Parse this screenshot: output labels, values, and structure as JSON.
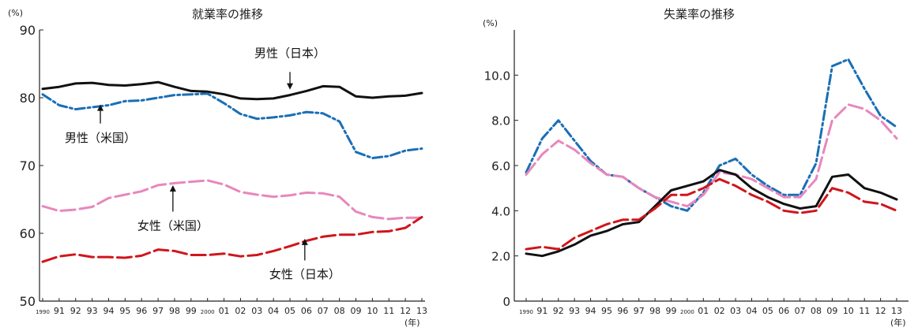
{
  "chart_data": [
    {
      "type": "line",
      "title": "就業率の推移",
      "y_unit": "(%)",
      "x_unit": "(年)",
      "categories": [
        "1990",
        "91",
        "92",
        "93",
        "94",
        "95",
        "96",
        "97",
        "98",
        "99",
        "2000",
        "01",
        "02",
        "03",
        "04",
        "05",
        "06",
        "07",
        "08",
        "09",
        "10",
        "11",
        "12",
        "13"
      ],
      "ylim": [
        50,
        90
      ],
      "yticks": [
        "50",
        "60",
        "70",
        "80",
        "90"
      ],
      "grid": false,
      "series": [
        {
          "name": "男性（日本）",
          "color": "#111111",
          "style": "solid",
          "values": [
            81.3,
            81.6,
            82.1,
            82.2,
            81.9,
            81.8,
            82.0,
            82.3,
            81.6,
            81.0,
            80.9,
            80.5,
            79.9,
            79.8,
            79.9,
            80.4,
            81.0,
            81.7,
            81.6,
            80.2,
            80.0,
            80.2,
            80.3,
            80.7
          ],
          "label": {
            "text": "男性（日本）",
            "at": 15,
            "arrow_from": 83.8,
            "arrow_to": 81.2,
            "text_y": 86.0
          }
        },
        {
          "name": "男性（米国）",
          "color": "#1a6fb5",
          "style": "dashdot",
          "values": [
            80.5,
            78.9,
            78.3,
            78.6,
            78.9,
            79.5,
            79.6,
            80.0,
            80.4,
            80.5,
            80.6,
            79.2,
            77.6,
            76.9,
            77.1,
            77.4,
            77.9,
            77.7,
            76.5,
            72.0,
            71.1,
            71.4,
            72.2,
            72.5
          ],
          "label": {
            "text": "男性（米国）",
            "at": 3.5,
            "arrow_from": 76.2,
            "arrow_to": 79.0,
            "text_y": 73.5
          }
        },
        {
          "name": "女性（米国）",
          "color": "#e887bd",
          "style": "longdash",
          "values": [
            64.0,
            63.3,
            63.5,
            63.9,
            65.2,
            65.7,
            66.2,
            67.1,
            67.4,
            67.6,
            67.8,
            67.2,
            66.1,
            65.7,
            65.4,
            65.6,
            66.0,
            65.9,
            65.4,
            63.2,
            62.4,
            62.1,
            62.3,
            62.3
          ],
          "label": {
            "text": "女性（米国）",
            "at": 7.9,
            "arrow_from": 63.2,
            "arrow_to": 67.1,
            "text_y": 60.5
          }
        },
        {
          "name": "女性（日本）",
          "color": "#d0151c",
          "style": "longdash",
          "values": [
            55.8,
            56.6,
            56.9,
            56.5,
            56.5,
            56.4,
            56.7,
            57.6,
            57.4,
            56.8,
            56.8,
            57.0,
            56.6,
            56.8,
            57.4,
            58.1,
            58.9,
            59.5,
            59.8,
            59.8,
            60.2,
            60.3,
            60.8,
            62.4
          ],
          "label": {
            "text": "女性（日本）",
            "at": 15.9,
            "arrow_from": 56.0,
            "arrow_to": 59.2,
            "text_y": 53.4
          }
        }
      ]
    },
    {
      "type": "line",
      "title": "失業率の推移",
      "y_unit": "(%)",
      "x_unit": "(年)",
      "categories": [
        "1990",
        "91",
        "92",
        "93",
        "94",
        "95",
        "96",
        "97",
        "98",
        "99",
        "2000",
        "01",
        "02",
        "03",
        "04",
        "05",
        "06",
        "07",
        "08",
        "09",
        "10",
        "11",
        "12",
        "13"
      ],
      "ylim": [
        0,
        12
      ],
      "yticks": [
        "0",
        "2.0",
        "4.0",
        "6.0",
        "8.0",
        "10.0"
      ],
      "grid": false,
      "series": [
        {
          "color": "#1a6fb5",
          "style": "dashdot",
          "values": [
            5.7,
            7.2,
            8.0,
            7.1,
            6.2,
            5.6,
            5.5,
            5.0,
            4.6,
            4.2,
            4.0,
            4.8,
            6.0,
            6.3,
            5.6,
            5.1,
            4.7,
            4.7,
            6.1,
            10.4,
            10.7,
            9.4,
            8.2,
            7.7
          ]
        },
        {
          "color": "#e887bd",
          "style": "longdash",
          "values": [
            5.6,
            6.5,
            7.1,
            6.7,
            6.1,
            5.6,
            5.5,
            5.0,
            4.6,
            4.4,
            4.2,
            4.7,
            5.7,
            5.6,
            5.4,
            5.0,
            4.6,
            4.6,
            5.4,
            8.0,
            8.7,
            8.5,
            8.0,
            7.2
          ]
        },
        {
          "color": "#111111",
          "style": "solid",
          "values": [
            2.1,
            2.0,
            2.2,
            2.5,
            2.9,
            3.1,
            3.4,
            3.5,
            4.2,
            4.9,
            5.1,
            5.3,
            5.8,
            5.6,
            5.0,
            4.6,
            4.3,
            4.1,
            4.2,
            5.5,
            5.6,
            5.0,
            4.8,
            4.5
          ]
        },
        {
          "color": "#d0151c",
          "style": "longdash",
          "values": [
            2.3,
            2.4,
            2.3,
            2.8,
            3.1,
            3.4,
            3.6,
            3.6,
            4.1,
            4.7,
            4.7,
            5.0,
            5.4,
            5.1,
            4.7,
            4.4,
            4.0,
            3.9,
            4.0,
            5.0,
            4.8,
            4.4,
            4.3,
            4.0
          ]
        }
      ]
    }
  ]
}
